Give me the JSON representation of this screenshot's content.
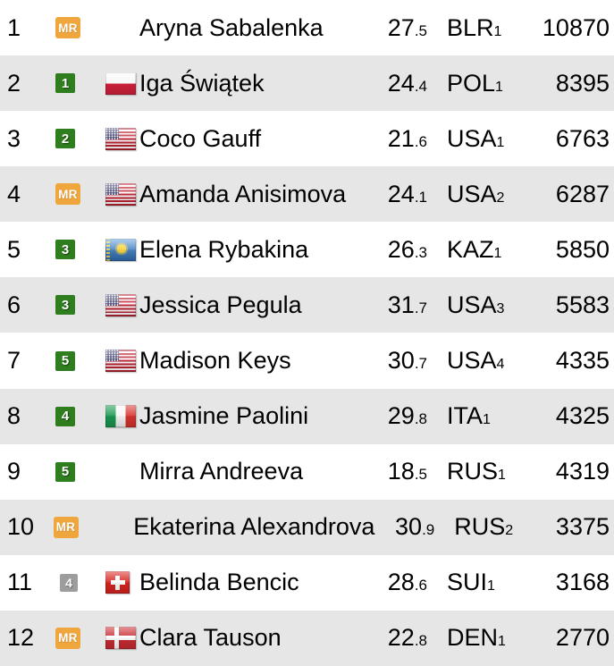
{
  "table": {
    "colors": {
      "badge_mr": "#efa63c",
      "badge_up": "#2e7d1f",
      "badge_neutral": "#9d9d9d",
      "row_alt": "#e6e6e6",
      "text": "#000000"
    },
    "rows": [
      {
        "rank": "1",
        "badge": {
          "type": "mr",
          "label": "MR"
        },
        "flag": "none",
        "name": "Aryna Sabalenka",
        "age": "27.5",
        "country": "BLR",
        "country_sub": "1",
        "points": "10870"
      },
      {
        "rank": "2",
        "badge": {
          "type": "up",
          "label": "1"
        },
        "flag": "pol",
        "name": "Iga Świątek",
        "age": "24.4",
        "country": "POL",
        "country_sub": "1",
        "points": "8395"
      },
      {
        "rank": "3",
        "badge": {
          "type": "up",
          "label": "2"
        },
        "flag": "usa",
        "name": "Coco Gauff",
        "age": "21.6",
        "country": "USA",
        "country_sub": "1",
        "points": "6763"
      },
      {
        "rank": "4",
        "badge": {
          "type": "mr",
          "label": "MR"
        },
        "flag": "usa",
        "name": "Amanda Anisimova",
        "age": "24.1",
        "country": "USA",
        "country_sub": "2",
        "points": "6287"
      },
      {
        "rank": "5",
        "badge": {
          "type": "up",
          "label": "3"
        },
        "flag": "kaz",
        "name": "Elena Rybakina",
        "age": "26.3",
        "country": "KAZ",
        "country_sub": "1",
        "points": "5850"
      },
      {
        "rank": "6",
        "badge": {
          "type": "up",
          "label": "3"
        },
        "flag": "usa",
        "name": "Jessica Pegula",
        "age": "31.7",
        "country": "USA",
        "country_sub": "3",
        "points": "5583"
      },
      {
        "rank": "7",
        "badge": {
          "type": "up",
          "label": "5"
        },
        "flag": "usa",
        "name": "Madison Keys",
        "age": "30.7",
        "country": "USA",
        "country_sub": "4",
        "points": "4335"
      },
      {
        "rank": "8",
        "badge": {
          "type": "up",
          "label": "4"
        },
        "flag": "ita",
        "name": "Jasmine Paolini",
        "age": "29.8",
        "country": "ITA",
        "country_sub": "1",
        "points": "4325"
      },
      {
        "rank": "9",
        "badge": {
          "type": "up",
          "label": "5"
        },
        "flag": "none",
        "name": "Mirra Andreeva",
        "age": "18.5",
        "country": "RUS",
        "country_sub": "1",
        "points": "4319"
      },
      {
        "rank": "10",
        "badge": {
          "type": "mr",
          "label": "MR"
        },
        "flag": "none",
        "name": "Ekaterina Alexandrova",
        "age": "30.9",
        "country": "RUS",
        "country_sub": "2",
        "points": "3375"
      },
      {
        "rank": "11",
        "badge": {
          "type": "neutral",
          "label": "4"
        },
        "flag": "sui",
        "name": "Belinda Bencic",
        "age": "28.6",
        "country": "SUI",
        "country_sub": "1",
        "points": "3168"
      },
      {
        "rank": "12",
        "badge": {
          "type": "mr",
          "label": "MR"
        },
        "flag": "den",
        "name": "Clara Tauson",
        "age": "22.8",
        "country": "DEN",
        "country_sub": "1",
        "points": "2770"
      }
    ]
  }
}
